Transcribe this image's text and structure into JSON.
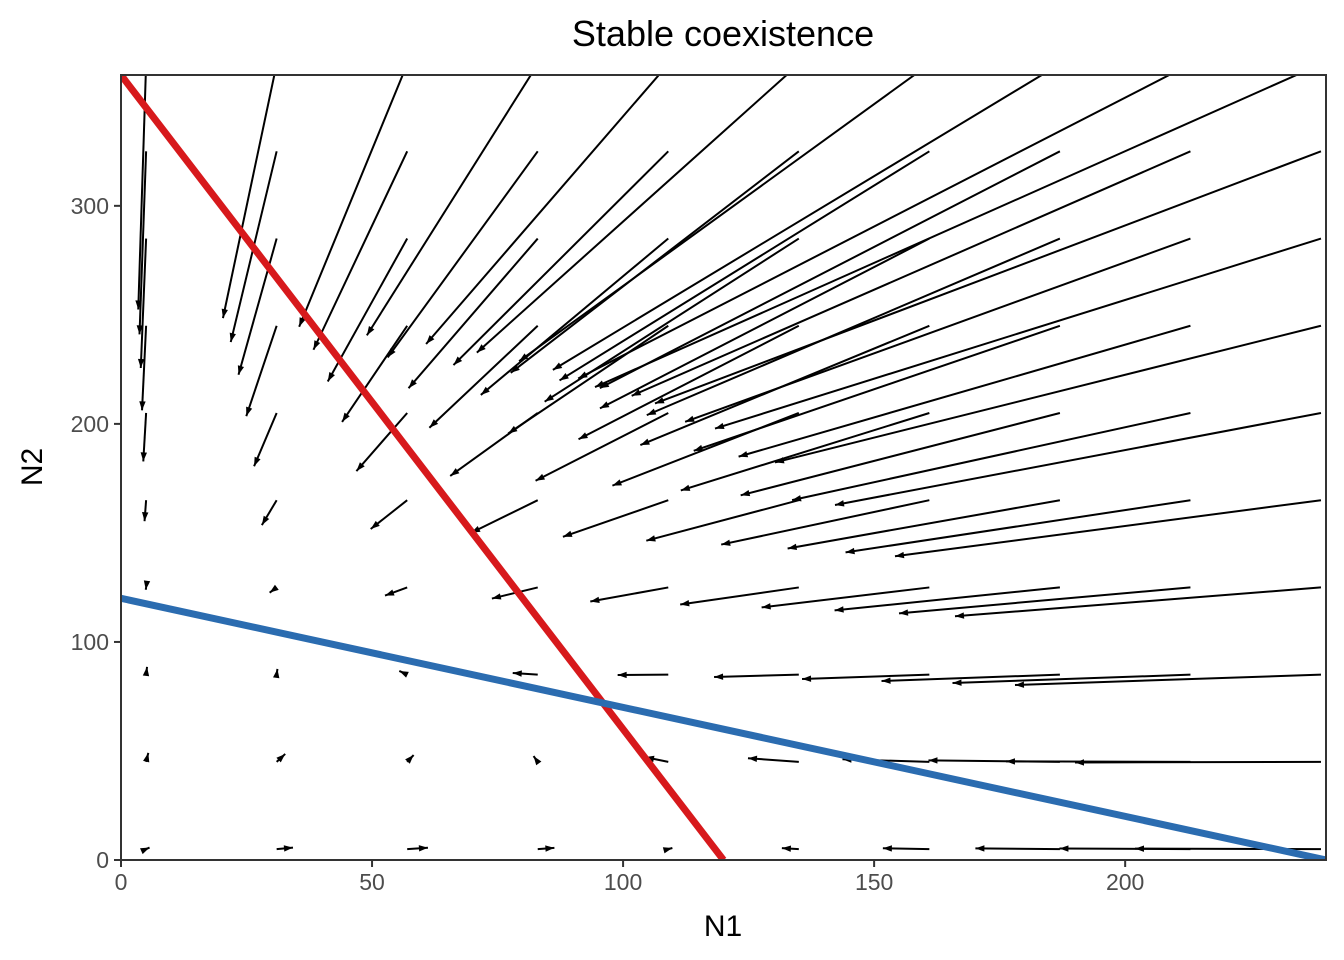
{
  "chart_data": {
    "type": "line",
    "title": "Stable coexistence",
    "xlabel": "N1",
    "ylabel": "N2",
    "xlim": [
      0,
      240
    ],
    "ylim": [
      0,
      360
    ],
    "x_ticks": [
      0,
      50,
      100,
      150,
      200
    ],
    "y_ticks": [
      0,
      100,
      200,
      300
    ],
    "grid": false,
    "series": [
      {
        "x": [
          0,
          120
        ],
        "y": [
          360,
          0
        ],
        "color": "#d7191c"
      },
      {
        "x": [
          0,
          240
        ],
        "y": [
          120,
          0
        ],
        "color": "#2b6cb0"
      }
    ],
    "vector_field": {
      "grid_x": [
        5,
        31,
        57,
        83,
        109,
        135,
        161,
        187,
        213,
        239
      ],
      "grid_y": [
        5,
        45,
        85,
        125,
        165,
        205,
        245,
        285,
        325,
        365
      ],
      "r": 0.15,
      "K1": 120,
      "K2": 120,
      "alpha12": 1,
      "alpha21": 0.3333
    }
  }
}
